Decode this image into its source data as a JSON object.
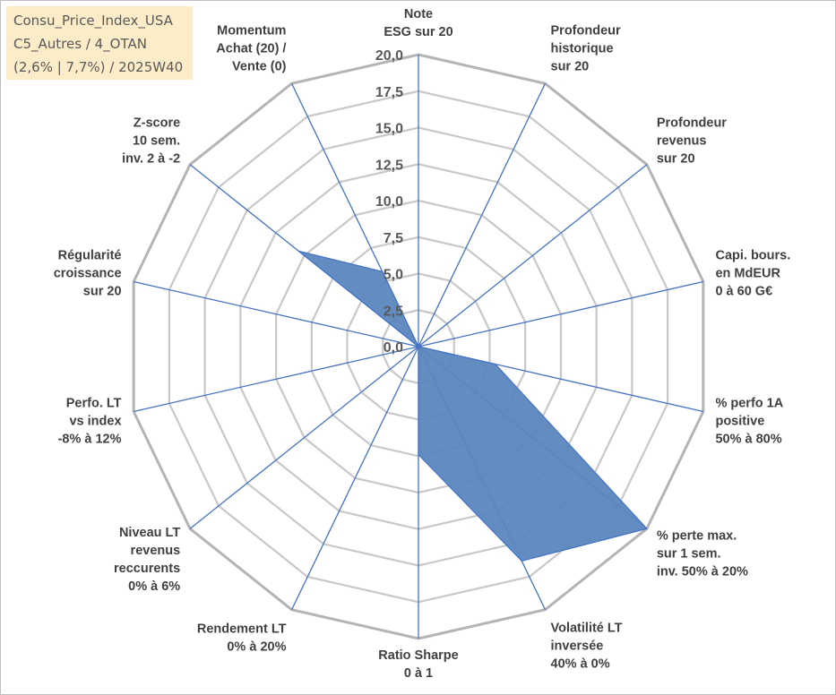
{
  "info_box": {
    "line1": "Consu_Price_Index_USA",
    "line2": "C5_Autres / 4_OTAN",
    "line3": "(2,6% | 7,7%) / 2025W40",
    "background": "#fdecc8"
  },
  "chart_data": {
    "type": "radar",
    "title": "",
    "axes": [
      [
        "Note",
        "ESG sur 20"
      ],
      [
        "Profondeur",
        "historique",
        "sur 20"
      ],
      [
        "Profondeur",
        "revenus",
        "sur 20"
      ],
      [
        "Capi. bours.",
        "en MdEUR",
        "0 à 60 G€"
      ],
      [
        "% perfo 1A",
        "positive",
        "50% à 80%"
      ],
      [
        "% perte max.",
        "sur 1 sem.",
        "inv. 50% à 20%"
      ],
      [
        "Volatilité LT",
        "inversée",
        "40% à 0%"
      ],
      [
        "Ratio Sharpe",
        "0 à 1"
      ],
      [
        "Rendement LT",
        "0% à 20%"
      ],
      [
        "Niveau LT",
        "revenus",
        "reccurents",
        "0% à 6%"
      ],
      [
        "Perfo. LT",
        "vs index",
        "-8% à 12%"
      ],
      [
        "Régularité",
        "croissance",
        "sur 20"
      ],
      [
        "Z-score",
        "10 sem.",
        "inv. 2 à -2"
      ],
      [
        "Momentum",
        "Achat (20) /",
        "Vente (0)"
      ]
    ],
    "ticks": [
      "0,0",
      "2,5",
      "5,0",
      "7,5",
      "10,0",
      "12,5",
      "15,0",
      "17,5",
      "20,0"
    ],
    "rmin": 0,
    "rmax": 20,
    "series": [
      {
        "values": [
          0,
          0,
          0,
          0,
          5.4,
          20,
          16.3,
          7.4,
          0,
          0,
          0,
          0,
          10.5,
          5.7
        ]
      }
    ],
    "colors": {
      "fill": "#5b86be",
      "stroke": "#4472c4",
      "spokes": "#4472c4",
      "grid": "#c8c8c8",
      "outer_grid": "#b4b4b4"
    },
    "grid": true,
    "legend": "none"
  }
}
